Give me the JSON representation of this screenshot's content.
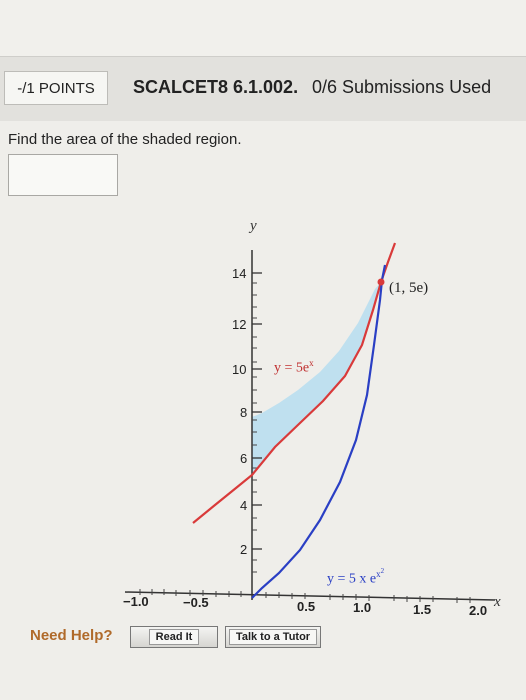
{
  "header": {
    "points": "-/1 POINTS",
    "problem_id": "SCALCET8 6.1.002.",
    "submissions": "0/6 Submissions Used"
  },
  "question": {
    "prompt": "Find the area of the shaded region.",
    "answer_value": ""
  },
  "graph": {
    "y_axis_label": "y",
    "x_axis_label": "x",
    "y_ticks": [
      "14",
      "12",
      "10",
      "8",
      "6",
      "4",
      "2"
    ],
    "x_ticks": [
      "−1.0",
      "−0.5",
      "0.5",
      "1.0",
      "1.5",
      "2.0"
    ],
    "curve_upper_label": "y = 5e",
    "curve_upper_exp": "x",
    "curve_lower_label": "y = 5 x e",
    "curve_lower_exp": "x",
    "curve_lower_exp2": "2",
    "point_label": "(1, 5e)",
    "colors": {
      "upper_curve": "#d93a3a",
      "lower_curve": "#2a3fc4",
      "shade": "#bfe0ef"
    }
  },
  "help": {
    "need_help": "Need Help?",
    "read_it": "Read It",
    "talk_to_tutor": "Talk to a Tutor"
  }
}
